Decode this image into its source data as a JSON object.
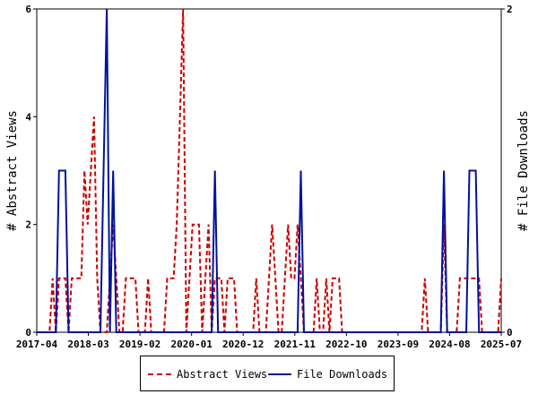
{
  "chart_data": {
    "type": "line",
    "x_axis": {
      "tick_labels": [
        "2017-04",
        "2018-03",
        "2019-02",
        "2020-01",
        "2020-12",
        "2021-11",
        "2022-10",
        "2023-09",
        "2024-08",
        "2025-07"
      ]
    },
    "y_left": {
      "label": "# Abstract Views",
      "range": [
        0,
        6
      ],
      "ticks": [
        "0",
        "2",
        "4",
        "6"
      ]
    },
    "y_right": {
      "label": "# File Downloads",
      "range": [
        0,
        2
      ],
      "ticks": [
        "0",
        "2"
      ]
    },
    "series": [
      {
        "name": "Abstract Views",
        "axis": "left",
        "color": "#cc0000",
        "style": "dashed",
        "points": [
          [
            0,
            0
          ],
          [
            1,
            0
          ],
          [
            2,
            0
          ],
          [
            3,
            0
          ],
          [
            4,
            0
          ],
          [
            5,
            1
          ],
          [
            6,
            0
          ],
          [
            7,
            1
          ],
          [
            8,
            1
          ],
          [
            9,
            1
          ],
          [
            10,
            0
          ],
          [
            11,
            1
          ],
          [
            12,
            1
          ],
          [
            13,
            1
          ],
          [
            14,
            1
          ],
          [
            15,
            3
          ],
          [
            16,
            2
          ],
          [
            17,
            3
          ],
          [
            18,
            4
          ],
          [
            19,
            1
          ],
          [
            20,
            0
          ],
          [
            21,
            0
          ],
          [
            22,
            0
          ],
          [
            23,
            1
          ],
          [
            24,
            2
          ],
          [
            25,
            1
          ],
          [
            26,
            0
          ],
          [
            27,
            0
          ],
          [
            28,
            1
          ],
          [
            29,
            1
          ],
          [
            30,
            1
          ],
          [
            31,
            1
          ],
          [
            32,
            0
          ],
          [
            33,
            0
          ],
          [
            34,
            0
          ],
          [
            35,
            1
          ],
          [
            36,
            0
          ],
          [
            37,
            0
          ],
          [
            38,
            0
          ],
          [
            39,
            0
          ],
          [
            40,
            0
          ],
          [
            41,
            1
          ],
          [
            42,
            1
          ],
          [
            43,
            1
          ],
          [
            44,
            2
          ],
          [
            45,
            4
          ],
          [
            46,
            6
          ],
          [
            47,
            0
          ],
          [
            48,
            1
          ],
          [
            49,
            2
          ],
          [
            50,
            2
          ],
          [
            51,
            2
          ],
          [
            52,
            0
          ],
          [
            53,
            1
          ],
          [
            54,
            2
          ],
          [
            55,
            0
          ],
          [
            56,
            1
          ],
          [
            57,
            1
          ],
          [
            58,
            1
          ],
          [
            59,
            0
          ],
          [
            60,
            1
          ],
          [
            61,
            1
          ],
          [
            62,
            1
          ],
          [
            63,
            0
          ],
          [
            64,
            0
          ],
          [
            65,
            0
          ],
          [
            66,
            0
          ],
          [
            67,
            0
          ],
          [
            68,
            0
          ],
          [
            69,
            1
          ],
          [
            70,
            0
          ],
          [
            71,
            0
          ],
          [
            72,
            0
          ],
          [
            73,
            1
          ],
          [
            74,
            2
          ],
          [
            75,
            1
          ],
          [
            76,
            0
          ],
          [
            77,
            0
          ],
          [
            78,
            1
          ],
          [
            79,
            2
          ],
          [
            80,
            1
          ],
          [
            81,
            1
          ],
          [
            82,
            2
          ],
          [
            83,
            1
          ],
          [
            84,
            0
          ],
          [
            85,
            0
          ],
          [
            86,
            0
          ],
          [
            87,
            0
          ],
          [
            88,
            1
          ],
          [
            89,
            0
          ],
          [
            90,
            0
          ],
          [
            91,
            1
          ],
          [
            92,
            0
          ],
          [
            93,
            1
          ],
          [
            94,
            1
          ],
          [
            95,
            1
          ],
          [
            96,
            0
          ],
          [
            97,
            0
          ],
          [
            98,
            0
          ],
          [
            99,
            0
          ],
          [
            100,
            0
          ],
          [
            101,
            0
          ],
          [
            102,
            0
          ],
          [
            103,
            0
          ],
          [
            104,
            0
          ],
          [
            105,
            0
          ],
          [
            106,
            0
          ],
          [
            107,
            0
          ],
          [
            108,
            0
          ],
          [
            109,
            0
          ],
          [
            110,
            0
          ],
          [
            111,
            0
          ],
          [
            112,
            0
          ],
          [
            113,
            0
          ],
          [
            114,
            0
          ],
          [
            115,
            0
          ],
          [
            116,
            0
          ],
          [
            117,
            0
          ],
          [
            118,
            0
          ],
          [
            119,
            0
          ],
          [
            120,
            0
          ],
          [
            121,
            0
          ],
          [
            122,
            1
          ],
          [
            123,
            0
          ],
          [
            124,
            0
          ],
          [
            125,
            0
          ],
          [
            126,
            0
          ],
          [
            127,
            0
          ],
          [
            128,
            2
          ],
          [
            129,
            0
          ],
          [
            130,
            0
          ],
          [
            131,
            0
          ],
          [
            132,
            0
          ],
          [
            133,
            1
          ],
          [
            134,
            1
          ],
          [
            135,
            1
          ],
          [
            136,
            1
          ],
          [
            137,
            1
          ],
          [
            138,
            1
          ],
          [
            139,
            1
          ],
          [
            140,
            0
          ],
          [
            141,
            0
          ],
          [
            142,
            0
          ],
          [
            143,
            0
          ],
          [
            144,
            0
          ],
          [
            145,
            0
          ],
          [
            146,
            1
          ]
        ]
      },
      {
        "name": "File Downloads",
        "axis": "right",
        "color": "#00139a",
        "style": "solid",
        "points": [
          [
            0,
            0
          ],
          [
            1,
            0
          ],
          [
            2,
            0
          ],
          [
            3,
            0
          ],
          [
            4,
            0
          ],
          [
            5,
            0
          ],
          [
            6,
            0
          ],
          [
            7,
            1
          ],
          [
            8,
            1
          ],
          [
            9,
            1
          ],
          [
            10,
            0
          ],
          [
            11,
            0
          ],
          [
            12,
            0
          ],
          [
            13,
            0
          ],
          [
            14,
            0
          ],
          [
            15,
            0
          ],
          [
            16,
            0
          ],
          [
            17,
            0
          ],
          [
            18,
            0
          ],
          [
            19,
            0
          ],
          [
            20,
            0
          ],
          [
            21,
            1
          ],
          [
            22,
            2
          ],
          [
            23,
            0
          ],
          [
            24,
            1
          ],
          [
            25,
            0
          ],
          [
            26,
            0
          ],
          [
            27,
            0
          ],
          [
            28,
            0
          ],
          [
            29,
            0
          ],
          [
            30,
            0
          ],
          [
            31,
            0
          ],
          [
            32,
            0
          ],
          [
            33,
            0
          ],
          [
            34,
            0
          ],
          [
            35,
            0
          ],
          [
            36,
            0
          ],
          [
            37,
            0
          ],
          [
            38,
            0
          ],
          [
            39,
            0
          ],
          [
            40,
            0
          ],
          [
            41,
            0
          ],
          [
            42,
            0
          ],
          [
            43,
            0
          ],
          [
            44,
            0
          ],
          [
            45,
            0
          ],
          [
            46,
            0
          ],
          [
            47,
            0
          ],
          [
            48,
            0
          ],
          [
            49,
            0
          ],
          [
            50,
            0
          ],
          [
            51,
            0
          ],
          [
            52,
            0
          ],
          [
            53,
            0
          ],
          [
            54,
            0
          ],
          [
            55,
            0
          ],
          [
            56,
            1
          ],
          [
            57,
            0
          ],
          [
            58,
            0
          ],
          [
            59,
            0
          ],
          [
            60,
            0
          ],
          [
            61,
            0
          ],
          [
            62,
            0
          ],
          [
            63,
            0
          ],
          [
            64,
            0
          ],
          [
            65,
            0
          ],
          [
            66,
            0
          ],
          [
            67,
            0
          ],
          [
            68,
            0
          ],
          [
            69,
            0
          ],
          [
            70,
            0
          ],
          [
            71,
            0
          ],
          [
            72,
            0
          ],
          [
            73,
            0
          ],
          [
            74,
            0
          ],
          [
            75,
            0
          ],
          [
            76,
            0
          ],
          [
            77,
            0
          ],
          [
            78,
            0
          ],
          [
            79,
            0
          ],
          [
            80,
            0
          ],
          [
            81,
            0
          ],
          [
            82,
            0
          ],
          [
            83,
            1
          ],
          [
            84,
            0
          ],
          [
            85,
            0
          ],
          [
            86,
            0
          ],
          [
            87,
            0
          ],
          [
            88,
            0
          ],
          [
            89,
            0
          ],
          [
            90,
            0
          ],
          [
            91,
            0
          ],
          [
            92,
            0
          ],
          [
            93,
            0
          ],
          [
            94,
            0
          ],
          [
            95,
            0
          ],
          [
            96,
            0
          ],
          [
            97,
            0
          ],
          [
            98,
            0
          ],
          [
            99,
            0
          ],
          [
            100,
            0
          ],
          [
            101,
            0
          ],
          [
            102,
            0
          ],
          [
            103,
            0
          ],
          [
            104,
            0
          ],
          [
            105,
            0
          ],
          [
            106,
            0
          ],
          [
            107,
            0
          ],
          [
            108,
            0
          ],
          [
            109,
            0
          ],
          [
            110,
            0
          ],
          [
            111,
            0
          ],
          [
            112,
            0
          ],
          [
            113,
            0
          ],
          [
            114,
            0
          ],
          [
            115,
            0
          ],
          [
            116,
            0
          ],
          [
            117,
            0
          ],
          [
            118,
            0
          ],
          [
            119,
            0
          ],
          [
            120,
            0
          ],
          [
            121,
            0
          ],
          [
            122,
            0
          ],
          [
            123,
            0
          ],
          [
            124,
            0
          ],
          [
            125,
            0
          ],
          [
            126,
            0
          ],
          [
            127,
            0
          ],
          [
            128,
            1
          ],
          [
            129,
            0
          ],
          [
            130,
            0
          ],
          [
            131,
            0
          ],
          [
            132,
            0
          ],
          [
            133,
            0
          ],
          [
            134,
            0
          ],
          [
            135,
            0
          ],
          [
            136,
            1
          ],
          [
            137,
            1
          ],
          [
            138,
            1
          ],
          [
            139,
            0
          ],
          [
            140,
            0
          ],
          [
            141,
            0
          ],
          [
            142,
            0
          ],
          [
            143,
            0
          ],
          [
            144,
            0
          ],
          [
            145,
            0
          ],
          [
            146,
            0
          ]
        ]
      }
    ],
    "x_range": [
      0,
      146
    ],
    "grid": false,
    "legend_position": "bottom-center"
  }
}
